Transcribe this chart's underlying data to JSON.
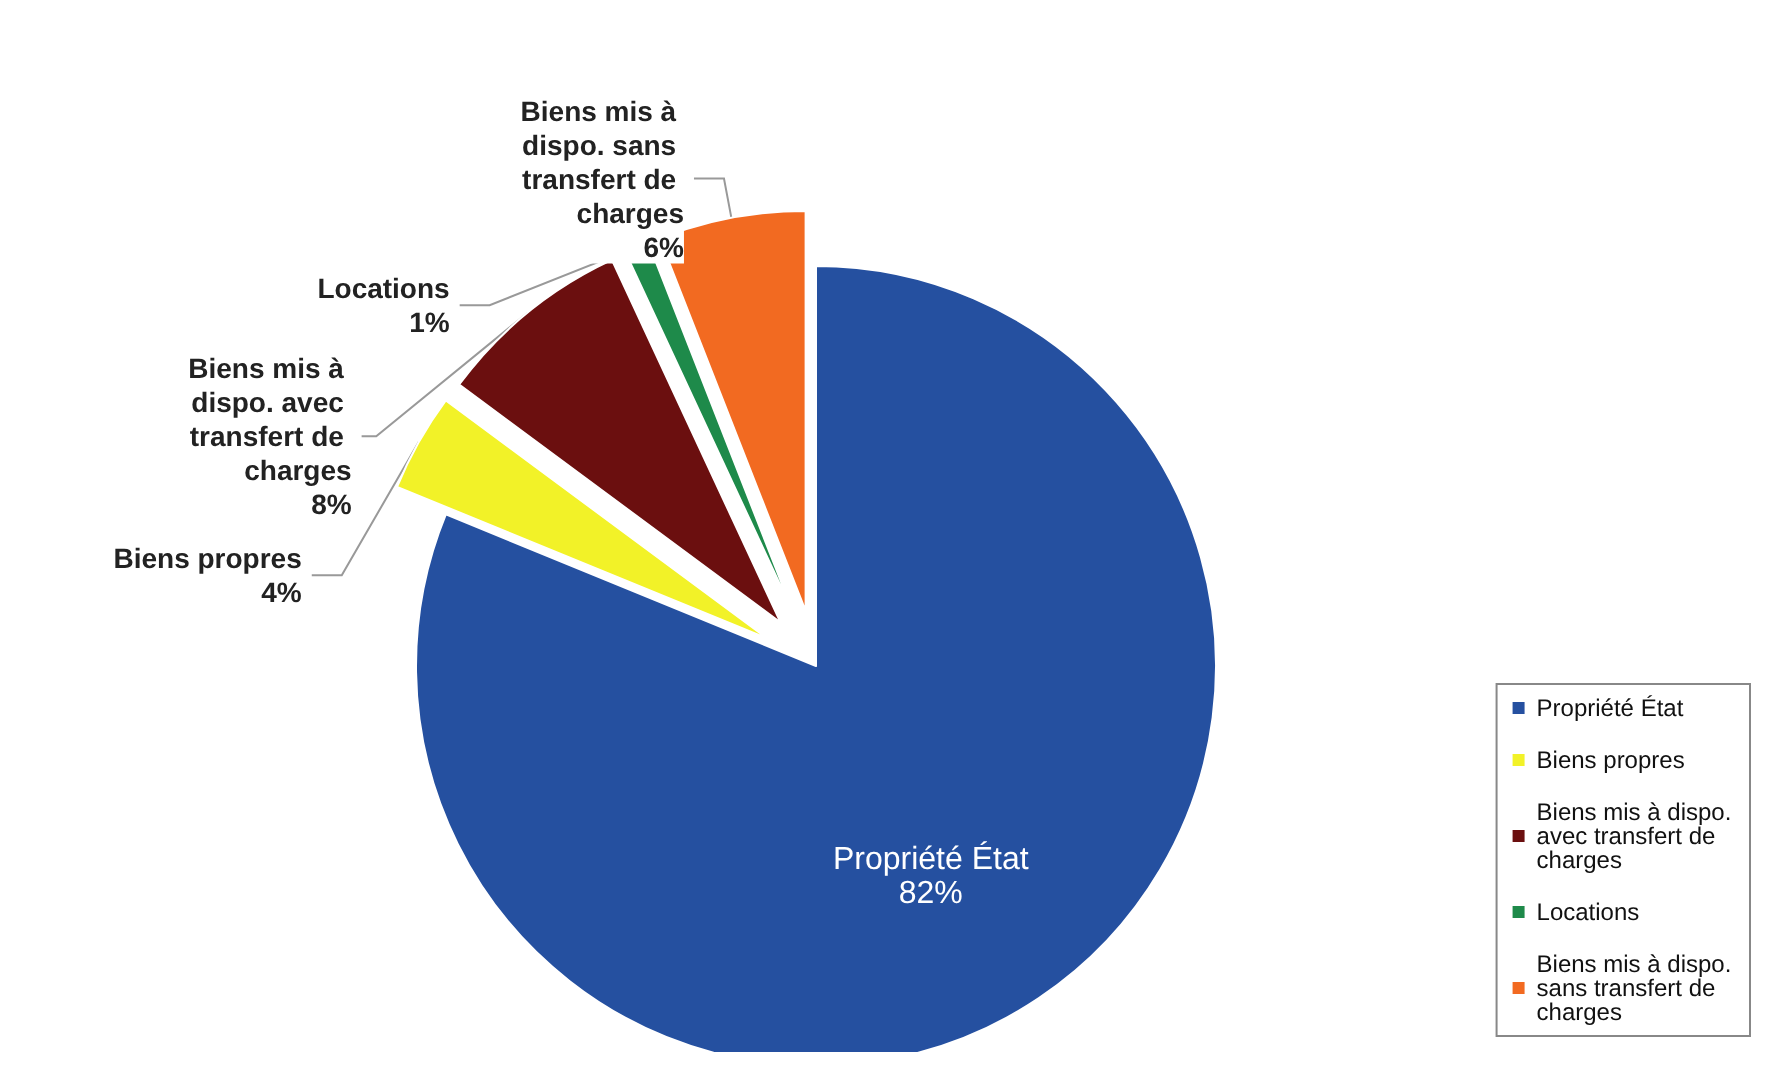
{
  "chart_data": {
    "type": "pie",
    "categories": [
      "Propriété État",
      "Biens propres",
      "Biens mis à dispo. avec transfert de charges",
      "Locations",
      "Biens mis à dispo. sans transfert de charges"
    ],
    "values": [
      82,
      4,
      8,
      1,
      6
    ],
    "colors": [
      "#2550a0",
      "#f2f228",
      "#6b0f0f",
      "#1e8a4a",
      "#f26a21"
    ],
    "value_labels": [
      "82%",
      "4%",
      "8%",
      "1%",
      "6%"
    ],
    "legend": "bottom right"
  }
}
